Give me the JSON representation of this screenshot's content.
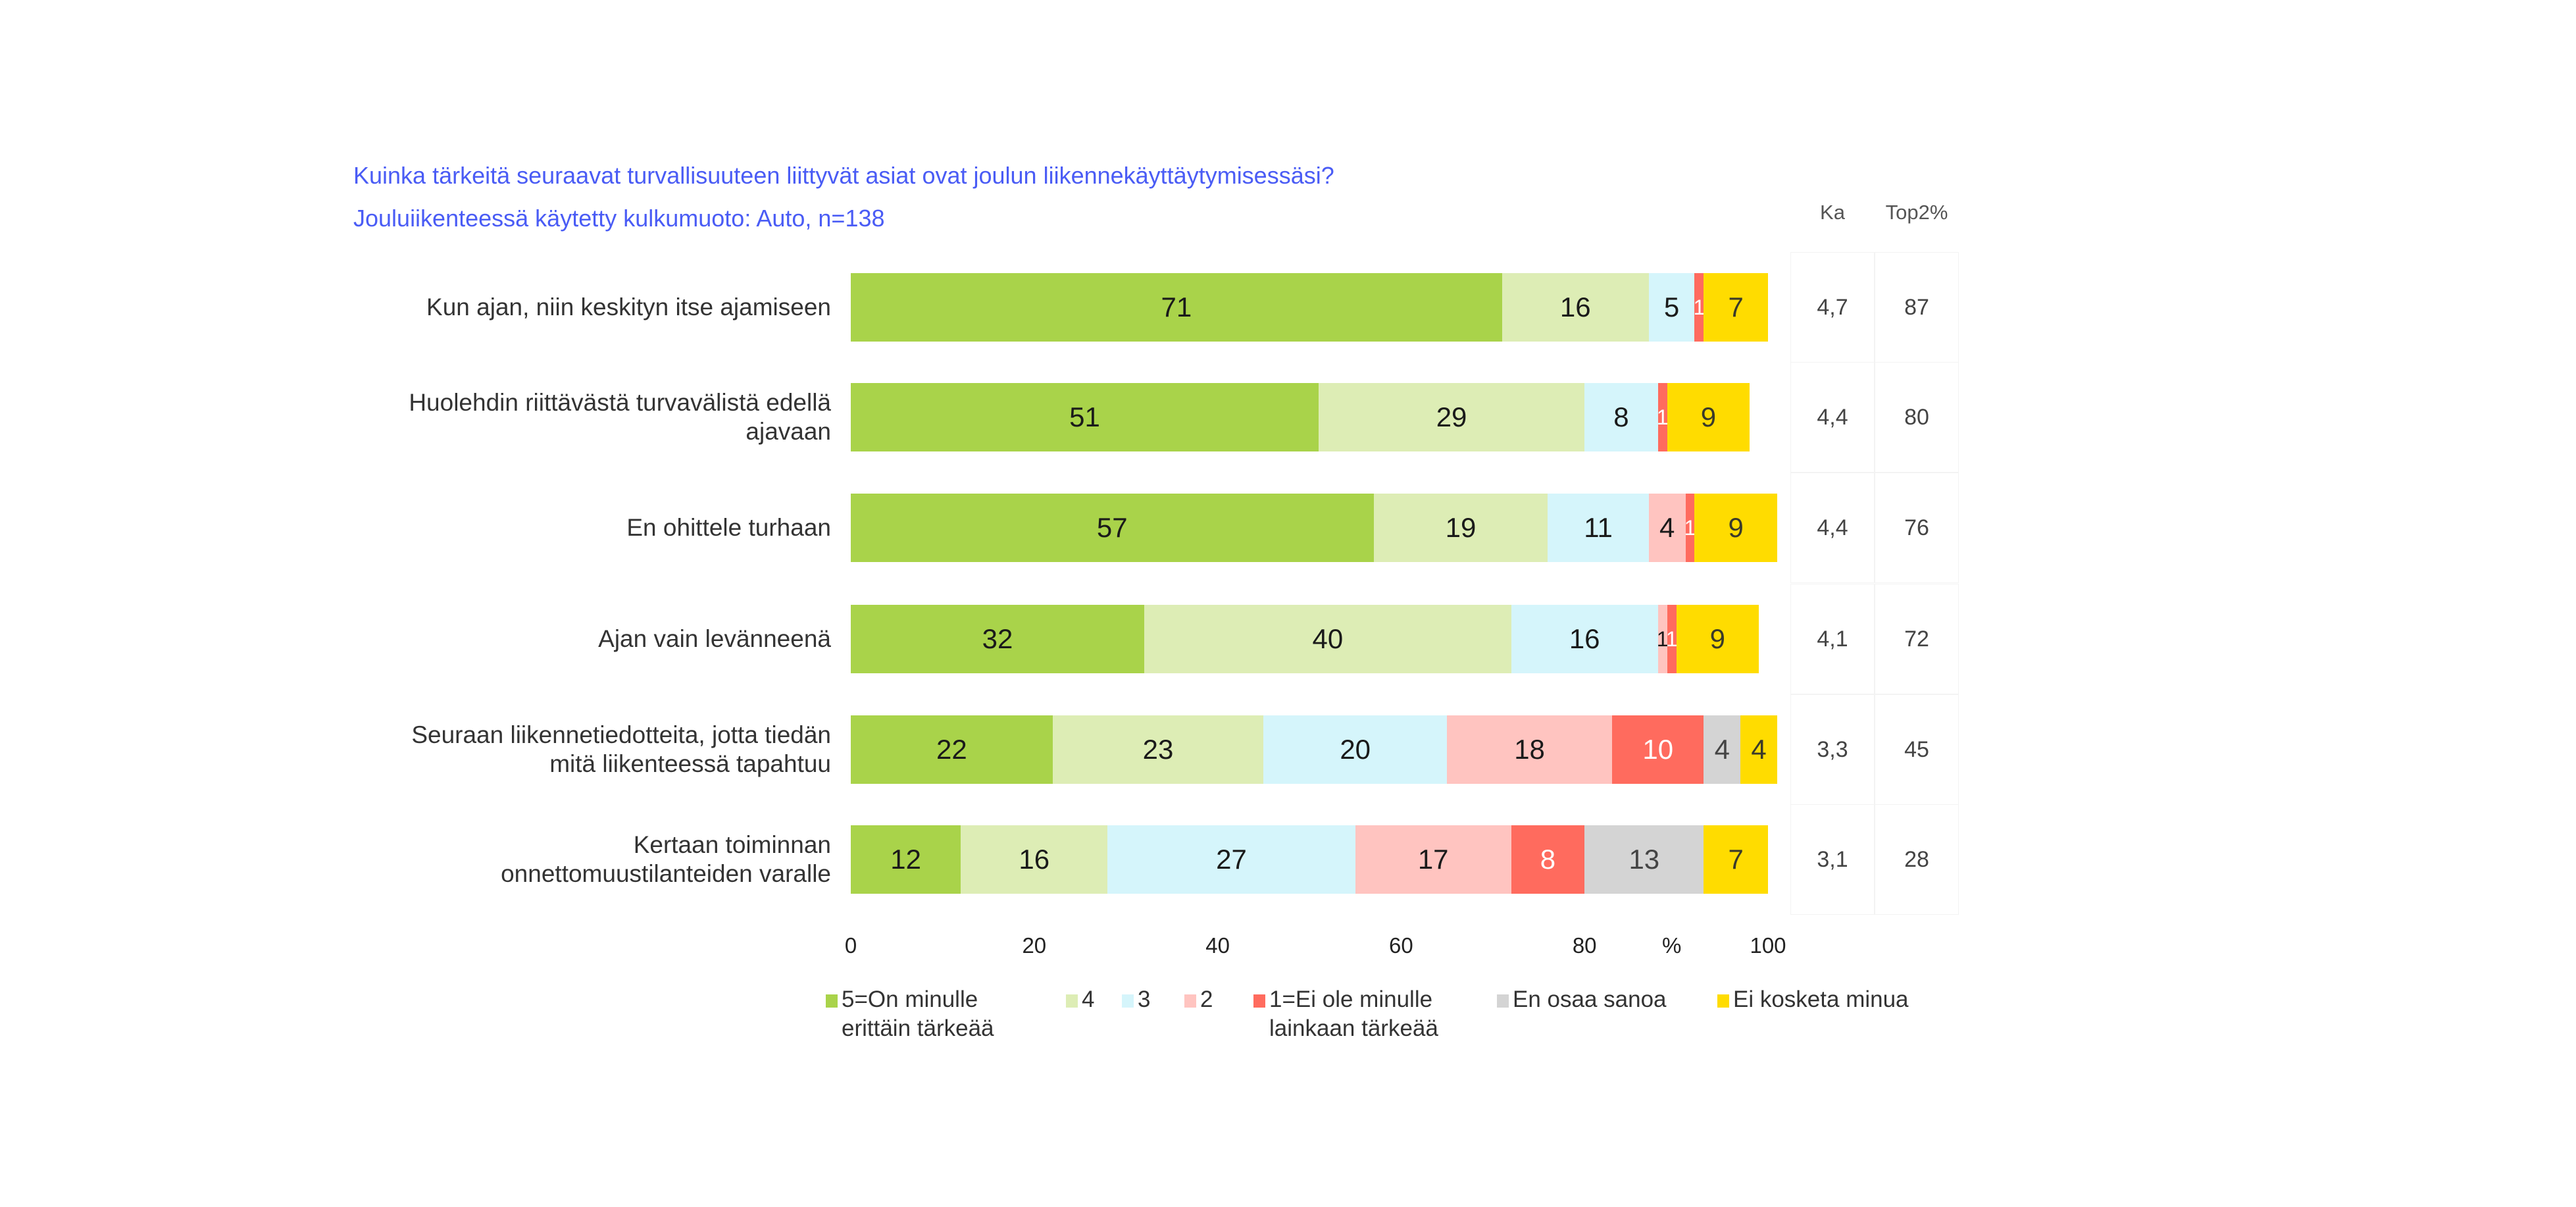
{
  "chart_data": {
    "type": "bar",
    "orientation": "horizontal",
    "stacked": true,
    "title": "Kuinka tärkeitä seuraavat turvallisuuteen liittyvät asiat ovat joulun liikennekäyttäytymisessäsi?",
    "subtitle": "Jouluiikenteessä käytetty kulkumuoto: Auto, n=138",
    "xlabel": "%",
    "xlim": [
      0,
      100
    ],
    "xticks": [
      "0",
      "20",
      "40",
      "60",
      "80",
      "100"
    ],
    "grid": false,
    "legend_position": "bottom",
    "categories": [
      "Kun ajan, niin keskityn itse ajamiseen",
      "Huolehdin riittävästä turvavälistä edellä ajavaan",
      "En ohittele turhaan",
      "Ajan vain levänneenä",
      "Seuraan liikennetiedotteita, jotta tiedän mitä liikenteessä tapahtuu",
      "Kertaan toiminnan onnettomuustilanteiden varalle"
    ],
    "category_lines": [
      [
        "Kun ajan, niin keskityn itse ajamiseen"
      ],
      [
        "Huolehdin riittävästä turvavälistä edellä",
        "ajavaan"
      ],
      [
        "En ohittele turhaan"
      ],
      [
        "Ajan vain levänneenä"
      ],
      [
        "Seuraan liikennetiedotteita, jotta tiedän",
        "mitä liikenteessä tapahtuu"
      ],
      [
        "Kertaan toiminnan",
        "onnettomuustilanteiden varalle"
      ]
    ],
    "series": [
      {
        "name": "5=On minulle erittäin tärkeää",
        "legend_lines": [
          "5=On minulle",
          "erittäin tärkeää"
        ],
        "color": "#A9D34A",
        "label_color": "#1a1a1a",
        "values": [
          71,
          51,
          57,
          32,
          22,
          12
        ]
      },
      {
        "name": "4",
        "legend_lines": [
          "4"
        ],
        "color": "#DDEDB5",
        "label_color": "#1a1a1a",
        "values": [
          16,
          29,
          19,
          40,
          23,
          16
        ]
      },
      {
        "name": "3",
        "legend_lines": [
          "3"
        ],
        "color": "#D5F5FB",
        "label_color": "#1a1a1a",
        "values": [
          5,
          8,
          11,
          16,
          20,
          27
        ]
      },
      {
        "name": "2",
        "legend_lines": [
          "2"
        ],
        "color": "#FFC4C0",
        "label_color": "#1a1a1a",
        "values": [
          0,
          0,
          4,
          1,
          18,
          17
        ]
      },
      {
        "name": "1=Ei ole minulle lainkaan tärkeää",
        "legend_lines": [
          "1=Ei ole minulle",
          "lainkaan tärkeää"
        ],
        "color": "#FF6B5E",
        "label_color": "#ffffff",
        "values": [
          1,
          1,
          1,
          1,
          10,
          8
        ]
      },
      {
        "name": "En osaa sanoa",
        "legend_lines": [
          "En osaa sanoa"
        ],
        "color": "#D4D4D4",
        "label_color": "#444444",
        "values": [
          0,
          0,
          0,
          0,
          4,
          13
        ]
      },
      {
        "name": "Ei kosketa minua",
        "legend_lines": [
          "Ei kosketa minua"
        ],
        "color": "#FFDC00",
        "label_color": "#3a3a2a",
        "values": [
          7,
          9,
          9,
          9,
          4,
          7
        ]
      }
    ],
    "side_table": {
      "headers": [
        "Ka",
        "Top2%"
      ],
      "rows": [
        [
          "4,7",
          "87"
        ],
        [
          "4,4",
          "80"
        ],
        [
          "4,4",
          "76"
        ],
        [
          "4,1",
          "72"
        ],
        [
          "3,3",
          "45"
        ],
        [
          "3,1",
          "28"
        ]
      ]
    }
  }
}
